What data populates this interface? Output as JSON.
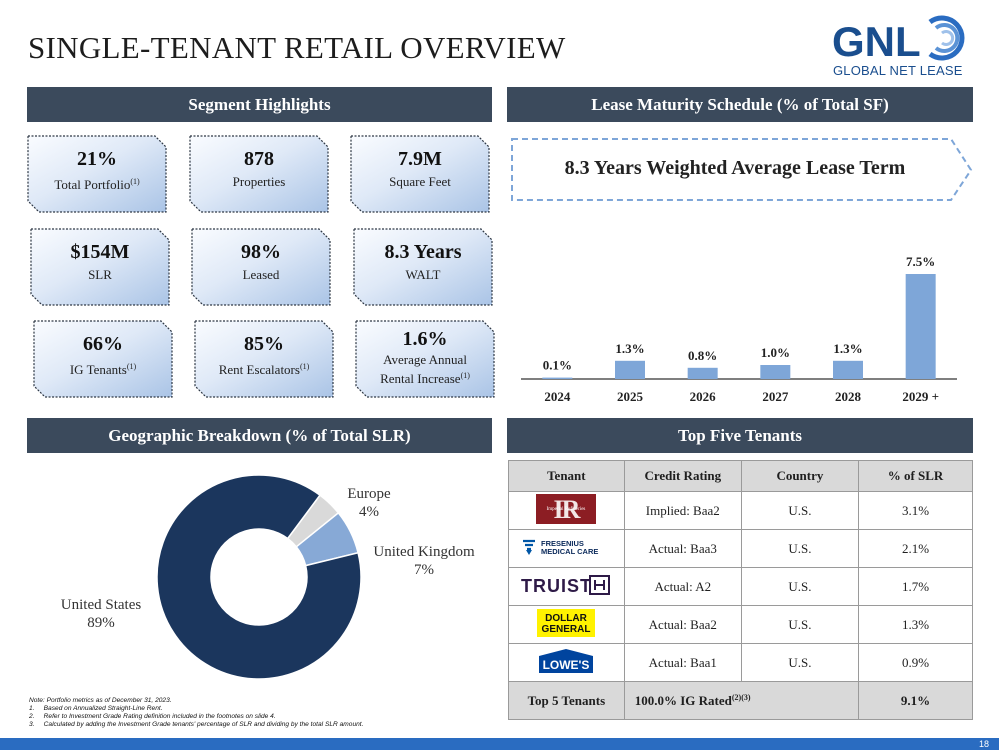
{
  "title": "SINGLE-TENANT RETAIL OVERVIEW",
  "logo": {
    "mark": "GNL",
    "sub": "GLOBAL NET LEASE"
  },
  "headers": {
    "segment": "Segment Highlights",
    "lease": "Lease Maturity Schedule (% of Total SF)",
    "geo": "Geographic Breakdown (% of Total SLR)",
    "tenants": "Top Five Tenants"
  },
  "highlights": [
    {
      "value": "21%",
      "label": "Total Portfolio",
      "sup": "(1)"
    },
    {
      "value": "878",
      "label": "Properties",
      "sup": ""
    },
    {
      "value": "7.9M",
      "label": "Square Feet",
      "sup": ""
    },
    {
      "value": "$154M",
      "label": "SLR",
      "sup": ""
    },
    {
      "value": "98%",
      "label": "Leased",
      "sup": ""
    },
    {
      "value": "8.3 Years",
      "label": "WALT",
      "sup": ""
    },
    {
      "value": "66%",
      "label": "IG Tenants",
      "sup": "(1)"
    },
    {
      "value": "85%",
      "label": "Rent Escalators",
      "sup": "(1)"
    },
    {
      "value": "1.6%",
      "label": "Average Annual",
      "label2": "Rental Increase",
      "sup": "(1)"
    }
  ],
  "walt_banner": "8.3 Years Weighted Average Lease Term",
  "chart_data": [
    {
      "type": "bar",
      "title": "Lease Maturity Schedule (% of Total SF)",
      "categories": [
        "2024",
        "2025",
        "2026",
        "2027",
        "2028",
        "2029 +"
      ],
      "values": [
        0.1,
        1.3,
        0.8,
        1.0,
        1.3,
        7.5
      ],
      "data_labels": [
        "0.1%",
        "1.3%",
        "0.8%",
        "1.0%",
        "1.3%",
        "7.5%"
      ],
      "ylim": [
        0,
        8.5
      ],
      "color": "#7ea6d8",
      "grid": false
    },
    {
      "type": "pie",
      "title": "Geographic Breakdown (% of Total SLR)",
      "categories": [
        "United States",
        "United Kingdom",
        "Europe"
      ],
      "values": [
        89,
        7,
        4
      ],
      "data_labels": [
        "89%",
        "7%",
        "4%"
      ],
      "colors": [
        "#1b365d",
        "#87a9d6",
        "#d9d9d9"
      ],
      "donut": true
    }
  ],
  "tenants": {
    "columns": [
      "Tenant",
      "Credit Rating",
      "Country",
      "% of SLR"
    ],
    "rows": [
      {
        "logo": "Imperial Refineries",
        "logo_icon": "imperial-refineries-logo",
        "rating": "Implied: Baa2",
        "country": "U.S.",
        "slr": "3.1%"
      },
      {
        "logo": "FRESENIUS MEDICAL CARE",
        "logo_icon": "fresenius-logo",
        "rating": "Actual: Baa3",
        "country": "U.S.",
        "slr": "2.1%"
      },
      {
        "logo": "TRUIST",
        "logo_icon": "truist-logo",
        "rating": "Actual: A2",
        "country": "U.S.",
        "slr": "1.7%"
      },
      {
        "logo": "DOLLAR GENERAL",
        "logo_icon": "dollar-general-logo",
        "rating": "Actual: Baa2",
        "country": "U.S.",
        "slr": "1.3%"
      },
      {
        "logo": "LOWE'S",
        "logo_icon": "lowes-logo",
        "rating": "Actual: Baa1",
        "country": "U.S.",
        "slr": "0.9%"
      }
    ],
    "total": {
      "label": "Top 5 Tenants",
      "rating": "100.0% IG Rated",
      "sup": "(2)(3)",
      "slr": "9.1%"
    }
  },
  "notes": [
    "Note: Portfolio metrics as of December 31, 2023.",
    "1.     Based on Annualized Straight-Line Rent.",
    "2.     Refer to Investment Grade Rating definition included in the footnotes on slide 4.",
    "3.     Calculated by adding the Investment Grade tenants' percentage of SLR and dividing by the total SLR amount."
  ],
  "page_number": "18"
}
